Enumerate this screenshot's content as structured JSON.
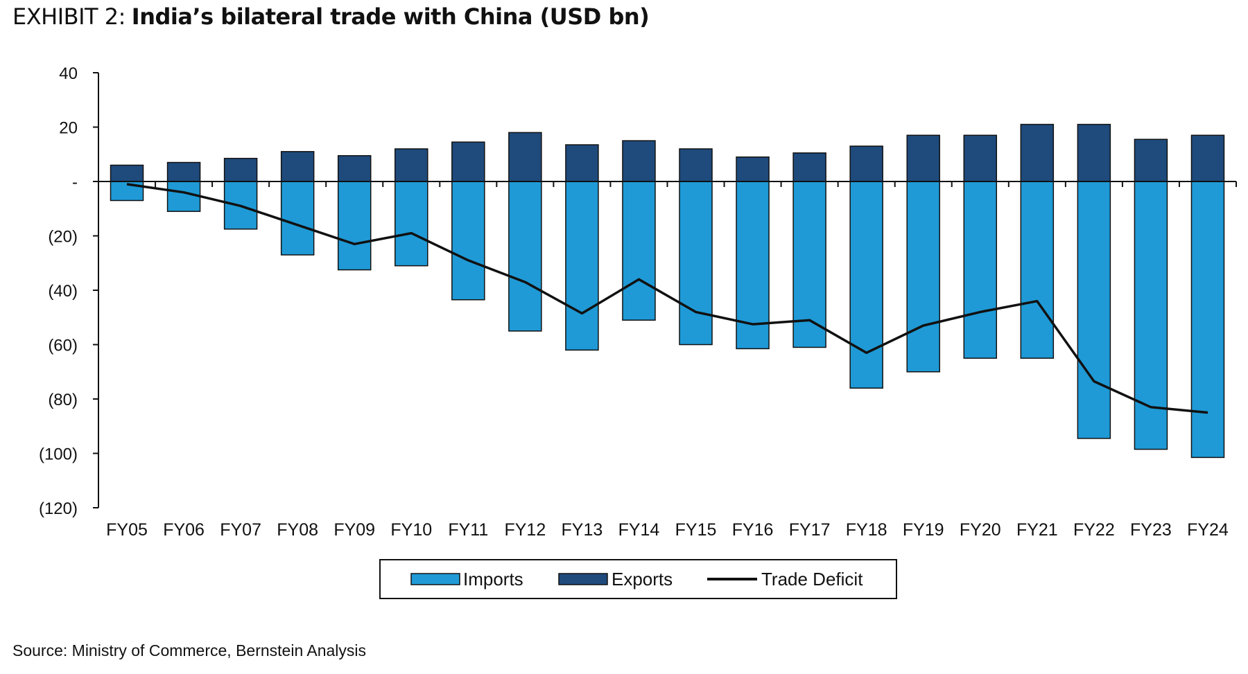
{
  "header": {
    "exhibit": "EXHIBIT 2:",
    "title": "India’s bilateral trade with China (USD bn)"
  },
  "footer": {
    "source": "Source: Ministry of Commerce, Bernstein Analysis"
  },
  "chart_data": {
    "type": "bar",
    "title": "India’s bilateral trade with China (USD bn)",
    "categories": [
      "FY05",
      "FY06",
      "FY07",
      "FY08",
      "FY09",
      "FY10",
      "FY11",
      "FY12",
      "FY13",
      "FY14",
      "FY15",
      "FY16",
      "FY17",
      "FY18",
      "FY19",
      "FY20",
      "FY21",
      "FY22",
      "FY23",
      "FY24"
    ],
    "y_tick_labels": [
      "40",
      "20",
      "-",
      "(20)",
      "(40)",
      "(60)",
      "(80)",
      "(100)",
      "(120)"
    ],
    "y_ticks": [
      40,
      20,
      0,
      -20,
      -40,
      -60,
      -80,
      -100,
      -120
    ],
    "ylim": [
      -120,
      40
    ],
    "grid": false,
    "legend_position": "bottom",
    "series": [
      {
        "name": "Imports",
        "type": "bar",
        "color": "#1f9ad6",
        "values": [
          -7,
          -11,
          -17.5,
          -27,
          -32.5,
          -31,
          -43.5,
          -55,
          -62,
          -51,
          -60,
          -61.5,
          -61,
          -76,
          -70,
          -65,
          -65,
          -94.5,
          -98.5,
          -101.5
        ]
      },
      {
        "name": "Exports",
        "type": "bar",
        "color": "#1f4a7c",
        "values": [
          6,
          7,
          8.5,
          11,
          9.5,
          12,
          14.5,
          18,
          13.5,
          15,
          12,
          9,
          10.5,
          13,
          17,
          17,
          21,
          21,
          15.5,
          17
        ]
      },
      {
        "name": "Trade Deficit",
        "type": "line",
        "color": "#111111",
        "values": [
          -1,
          -4,
          -9,
          -16,
          -23,
          -19,
          -29,
          -37,
          -48.5,
          -36,
          -48,
          -52.5,
          -51,
          -63,
          -53,
          -48,
          -44,
          -73.5,
          -83,
          -85
        ]
      }
    ]
  }
}
